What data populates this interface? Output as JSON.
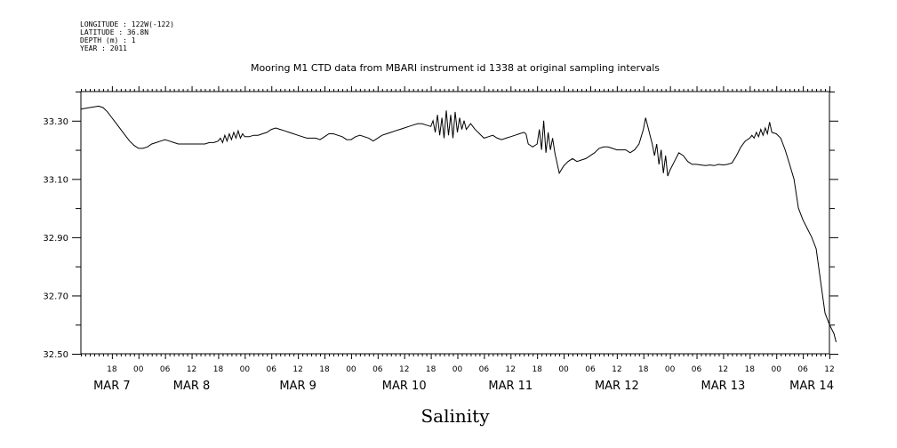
{
  "metadata": {
    "longitude": "LONGITUDE : 122W(-122)",
    "latitude": "LATITUDE : 36.8N",
    "depth": "DEPTH (m) : 1",
    "year": "YEAR : 2011"
  },
  "chart_data": {
    "type": "line",
    "title": "Mooring M1 CTD data from MBARI instrument id 1338 at original sampling intervals",
    "xlabel": "Salinity",
    "ylabel": "",
    "x_unit": "hours since MAR 7 00:00",
    "xlim": [
      -13,
      156
    ],
    "ylim": [
      32.5,
      33.4
    ],
    "y_ticks": [
      32.5,
      32.7,
      32.9,
      33.1,
      33.3
    ],
    "y_tick_labels": [
      "32.50",
      "32.70",
      "32.90",
      "33.10",
      "33.30"
    ],
    "x_hour_ticks": [
      {
        "t": -6,
        "label": "18"
      },
      {
        "t": 0,
        "label": "00"
      },
      {
        "t": 6,
        "label": "06"
      },
      {
        "t": 12,
        "label": "12"
      },
      {
        "t": 18,
        "label": "18"
      },
      {
        "t": 24,
        "label": "00"
      },
      {
        "t": 30,
        "label": "06"
      },
      {
        "t": 36,
        "label": "12"
      },
      {
        "t": 42,
        "label": "18"
      },
      {
        "t": 48,
        "label": "00"
      },
      {
        "t": 54,
        "label": "06"
      },
      {
        "t": 60,
        "label": "12"
      },
      {
        "t": 66,
        "label": "18"
      },
      {
        "t": 72,
        "label": "00"
      },
      {
        "t": 78,
        "label": "06"
      },
      {
        "t": 84,
        "label": "12"
      },
      {
        "t": 90,
        "label": "18"
      },
      {
        "t": 96,
        "label": "00"
      },
      {
        "t": 102,
        "label": "06"
      },
      {
        "t": 108,
        "label": "12"
      },
      {
        "t": 114,
        "label": "18"
      },
      {
        "t": 120,
        "label": "00"
      },
      {
        "t": 126,
        "label": "06"
      },
      {
        "t": 132,
        "label": "12"
      },
      {
        "t": 138,
        "label": "18"
      },
      {
        "t": 144,
        "label": "00"
      },
      {
        "t": 150,
        "label": "06"
      },
      {
        "t": 156,
        "label": "12"
      }
    ],
    "x_day_labels": [
      {
        "t": -6,
        "label": "MAR  7"
      },
      {
        "t": 12,
        "label": "MAR  8"
      },
      {
        "t": 36,
        "label": "MAR  9"
      },
      {
        "t": 60,
        "label": "MAR 10"
      },
      {
        "t": 84,
        "label": "MAR 11"
      },
      {
        "t": 108,
        "label": "MAR 12"
      },
      {
        "t": 132,
        "label": "MAR 13"
      },
      {
        "t": 152,
        "label": "MAR 14"
      }
    ],
    "series": [
      {
        "points": [
          [
            -13,
            33.34
          ],
          [
            -11,
            33.345
          ],
          [
            -9,
            33.35
          ],
          [
            -8,
            33.345
          ],
          [
            -7,
            33.33
          ],
          [
            -6,
            33.31
          ],
          [
            -5,
            33.29
          ],
          [
            -4,
            33.27
          ],
          [
            -3,
            33.25
          ],
          [
            -2,
            33.23
          ],
          [
            -1,
            33.215
          ],
          [
            0,
            33.205
          ],
          [
            1,
            33.205
          ],
          [
            2,
            33.21
          ],
          [
            3,
            33.22
          ],
          [
            4,
            33.225
          ],
          [
            5,
            33.23
          ],
          [
            6,
            33.235
          ],
          [
            7,
            33.23
          ],
          [
            8,
            33.225
          ],
          [
            9,
            33.22
          ],
          [
            10,
            33.22
          ],
          [
            11,
            33.22
          ],
          [
            12,
            33.22
          ],
          [
            13,
            33.22
          ],
          [
            14,
            33.22
          ],
          [
            15,
            33.22
          ],
          [
            16,
            33.225
          ],
          [
            17,
            33.225
          ],
          [
            18,
            33.23
          ],
          [
            18.5,
            33.24
          ],
          [
            19,
            33.225
          ],
          [
            19.5,
            33.25
          ],
          [
            20,
            33.23
          ],
          [
            20.5,
            33.255
          ],
          [
            21,
            33.235
          ],
          [
            21.5,
            33.26
          ],
          [
            22,
            33.24
          ],
          [
            22.5,
            33.265
          ],
          [
            23,
            33.24
          ],
          [
            23.5,
            33.255
          ],
          [
            24,
            33.245
          ],
          [
            25,
            33.245
          ],
          [
            26,
            33.25
          ],
          [
            27,
            33.25
          ],
          [
            28,
            33.255
          ],
          [
            29,
            33.26
          ],
          [
            30,
            33.27
          ],
          [
            31,
            33.275
          ],
          [
            32,
            33.27
          ],
          [
            33,
            33.265
          ],
          [
            34,
            33.26
          ],
          [
            35,
            33.255
          ],
          [
            36,
            33.25
          ],
          [
            37,
            33.245
          ],
          [
            38,
            33.24
          ],
          [
            39,
            33.24
          ],
          [
            40,
            33.24
          ],
          [
            41,
            33.235
          ],
          [
            42,
            33.245
          ],
          [
            43,
            33.255
          ],
          [
            44,
            33.255
          ],
          [
            45,
            33.25
          ],
          [
            46,
            33.245
          ],
          [
            47,
            33.235
          ],
          [
            48,
            33.235
          ],
          [
            49,
            33.245
          ],
          [
            50,
            33.25
          ],
          [
            51,
            33.245
          ],
          [
            52,
            33.24
          ],
          [
            53,
            33.23
          ],
          [
            54,
            33.24
          ],
          [
            55,
            33.25
          ],
          [
            56,
            33.255
          ],
          [
            57,
            33.26
          ],
          [
            58,
            33.265
          ],
          [
            59,
            33.27
          ],
          [
            60,
            33.275
          ],
          [
            61,
            33.28
          ],
          [
            62,
            33.285
          ],
          [
            63,
            33.29
          ],
          [
            64,
            33.29
          ],
          [
            65,
            33.285
          ],
          [
            66,
            33.28
          ],
          [
            66.5,
            33.3
          ],
          [
            67,
            33.26
          ],
          [
            67.5,
            33.32
          ],
          [
            68,
            33.25
          ],
          [
            68.5,
            33.31
          ],
          [
            69,
            33.24
          ],
          [
            69.5,
            33.335
          ],
          [
            70,
            33.25
          ],
          [
            70.5,
            33.32
          ],
          [
            71,
            33.24
          ],
          [
            71.5,
            33.33
          ],
          [
            72,
            33.26
          ],
          [
            72.5,
            33.31
          ],
          [
            73,
            33.27
          ],
          [
            73.5,
            33.3
          ],
          [
            74,
            33.27
          ],
          [
            75,
            33.29
          ],
          [
            76,
            33.27
          ],
          [
            77,
            33.255
          ],
          [
            78,
            33.24
          ],
          [
            79,
            33.245
          ],
          [
            80,
            33.25
          ],
          [
            81,
            33.24
          ],
          [
            82,
            33.235
          ],
          [
            83,
            33.24
          ],
          [
            84,
            33.245
          ],
          [
            85,
            33.25
          ],
          [
            86,
            33.255
          ],
          [
            87,
            33.26
          ],
          [
            87.5,
            33.255
          ],
          [
            88,
            33.22
          ],
          [
            89,
            33.21
          ],
          [
            90,
            33.22
          ],
          [
            90.5,
            33.27
          ],
          [
            91,
            33.2
          ],
          [
            91.5,
            33.3
          ],
          [
            92,
            33.19
          ],
          [
            92.5,
            33.26
          ],
          [
            93,
            33.2
          ],
          [
            93.5,
            33.24
          ],
          [
            94,
            33.19
          ],
          [
            95,
            33.12
          ],
          [
            96,
            33.145
          ],
          [
            97,
            33.16
          ],
          [
            98,
            33.17
          ],
          [
            99,
            33.16
          ],
          [
            100,
            33.165
          ],
          [
            101,
            33.17
          ],
          [
            102,
            33.18
          ],
          [
            103,
            33.19
          ],
          [
            104,
            33.205
          ],
          [
            105,
            33.21
          ],
          [
            106,
            33.21
          ],
          [
            107,
            33.205
          ],
          [
            108,
            33.2
          ],
          [
            109,
            33.2
          ],
          [
            110,
            33.2
          ],
          [
            111,
            33.19
          ],
          [
            112,
            33.2
          ],
          [
            113,
            33.22
          ],
          [
            114,
            33.27
          ],
          [
            114.5,
            33.31
          ],
          [
            115,
            33.28
          ],
          [
            115.5,
            33.25
          ],
          [
            116,
            33.22
          ],
          [
            116.5,
            33.18
          ],
          [
            117,
            33.22
          ],
          [
            117.5,
            33.15
          ],
          [
            118,
            33.2
          ],
          [
            118.5,
            33.12
          ],
          [
            119,
            33.18
          ],
          [
            119.5,
            33.11
          ],
          [
            120,
            33.13
          ],
          [
            121,
            33.16
          ],
          [
            122,
            33.19
          ],
          [
            123,
            33.18
          ],
          [
            124,
            33.16
          ],
          [
            125,
            33.15
          ],
          [
            126,
            33.15
          ],
          [
            127,
            33.148
          ],
          [
            128,
            33.146
          ],
          [
            129,
            33.148
          ],
          [
            130,
            33.146
          ],
          [
            131,
            33.15
          ],
          [
            132,
            33.148
          ],
          [
            133,
            33.15
          ],
          [
            134,
            33.155
          ],
          [
            135,
            33.18
          ],
          [
            136,
            33.21
          ],
          [
            137,
            33.23
          ],
          [
            138,
            33.24
          ],
          [
            138.5,
            33.25
          ],
          [
            139,
            33.24
          ],
          [
            139.5,
            33.26
          ],
          [
            140,
            33.245
          ],
          [
            140.5,
            33.27
          ],
          [
            141,
            33.25
          ],
          [
            141.5,
            33.275
          ],
          [
            142,
            33.255
          ],
          [
            142.5,
            33.295
          ],
          [
            143,
            33.26
          ],
          [
            144,
            33.255
          ],
          [
            145,
            33.24
          ],
          [
            146,
            33.2
          ],
          [
            147,
            33.15
          ],
          [
            148,
            33.1
          ],
          [
            149,
            33.0
          ],
          [
            150,
            32.96
          ],
          [
            151,
            32.93
          ],
          [
            152,
            32.9
          ],
          [
            153,
            32.86
          ],
          [
            154,
            32.75
          ],
          [
            155,
            32.64
          ],
          [
            156,
            32.6
          ],
          [
            157,
            32.57
          ],
          [
            157.5,
            32.54
          ]
        ]
      }
    ]
  }
}
